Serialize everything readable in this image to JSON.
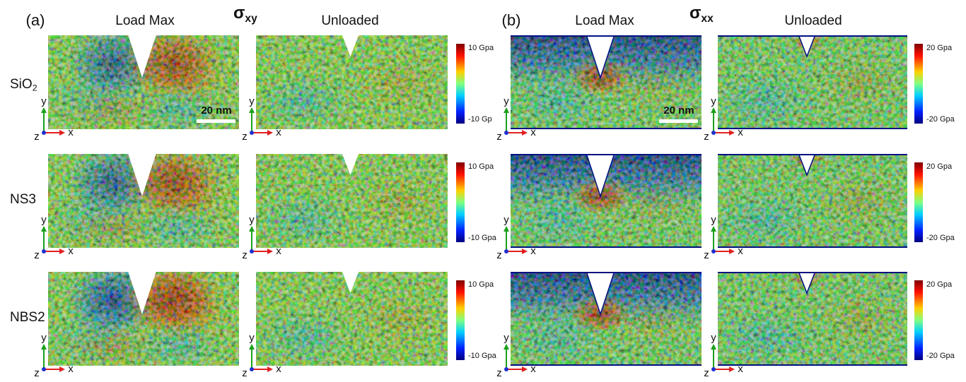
{
  "panel_a": {
    "label": "(a)",
    "quantity": {
      "text": "σ",
      "sub": "xy"
    },
    "columns": [
      "Load Max",
      "Unloaded"
    ],
    "scale_bar": "20 nm",
    "colorbars": [
      {
        "max": "10 Gpa",
        "min": "-10 Gp"
      },
      {
        "max": "10 Gpa",
        "min": "-10 Gpa"
      },
      {
        "max": "10 Gpa",
        "min": "-10 Gpa"
      }
    ]
  },
  "panel_b": {
    "label": "(b)",
    "quantity": {
      "text": "σ",
      "sub": "xx"
    },
    "columns": [
      "Load Max",
      "Unloaded"
    ],
    "scale_bar": "20 nm",
    "colorbars": [
      {
        "max": "20 Gpa",
        "min": "-20 Gpa"
      },
      {
        "max": "20 Gpa",
        "min": "-20 Gpa"
      },
      {
        "max": "20 Gpa",
        "min": "-20 Gpa"
      }
    ]
  },
  "rows": [
    {
      "text": "SiO",
      "sub": "2"
    },
    {
      "text": "NS3"
    },
    {
      "text": "NBS2"
    }
  ],
  "axis_triads": [
    {
      "x": "x",
      "y": "y",
      "z": "z"
    },
    {
      "x": "x",
      "y": "y",
      "z": "z"
    },
    {
      "x": "x",
      "y": "y",
      "z": "z"
    },
    {
      "x": "x",
      "y": "y",
      "z": "z"
    },
    {
      "x": "x",
      "y": "y",
      "z": "z"
    },
    {
      "x": "x",
      "y": "y",
      "z": "z"
    },
    {
      "x": "x",
      "y": "y",
      "z": "z"
    },
    {
      "x": "x",
      "y": "y",
      "z": "z"
    },
    {
      "x": "x",
      "y": "y",
      "z": "z"
    },
    {
      "x": "x",
      "y": "y",
      "z": "z"
    },
    {
      "x": "x",
      "y": "y",
      "z": "z"
    },
    {
      "x": "x",
      "y": "y",
      "z": "z"
    }
  ]
}
